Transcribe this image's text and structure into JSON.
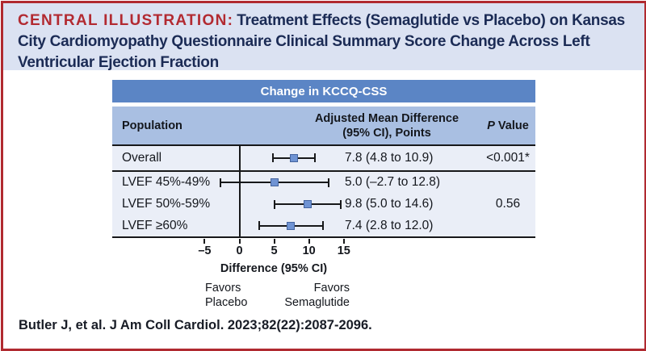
{
  "title": {
    "label": "CENTRAL ILLUSTRATION:",
    "text": "Treatment Effects (Semaglutide vs Placebo) on Kansas City Cardiomyopathy Questionnaire Clinical Summary Score Change Across Left Ventricular Ejection Fraction"
  },
  "table": {
    "header": "Change in KCCQ-CSS",
    "columns": {
      "population": "Population",
      "amd_line1": "Adjusted Mean Difference",
      "amd_line2": "(95% CI), Points",
      "p_italic": "P",
      "p_rest": " Value"
    }
  },
  "chart_data": {
    "type": "forest",
    "title": "Change in KCCQ-CSS",
    "xlabel": "Difference (95% CI)",
    "rows": [
      {
        "label": "Overall",
        "estimate": 7.8,
        "ci_low": 4.8,
        "ci_high": 10.9,
        "display": "7.8 (4.8 to 10.9)",
        "p": "<0.001*"
      },
      {
        "label": "LVEF 45%-49%",
        "estimate": 5.0,
        "ci_low": -2.7,
        "ci_high": 12.8,
        "display": "5.0 (–2.7 to 12.8)",
        "p": ""
      },
      {
        "label": "LVEF 50%-59%",
        "estimate": 9.8,
        "ci_low": 5.0,
        "ci_high": 14.6,
        "display": "9.8 (5.0 to 14.6)",
        "p": "0.56"
      },
      {
        "label": "LVEF ≥60%",
        "estimate": 7.4,
        "ci_low": 2.8,
        "ci_high": 12.0,
        "display": "7.4 (2.8 to 12.0)",
        "p": ""
      }
    ],
    "axis": {
      "ticks": [
        {
          "v": -5,
          "label": "–5"
        },
        {
          "v": 0,
          "label": "0"
        },
        {
          "v": 5,
          "label": "5"
        },
        {
          "v": 10,
          "label": "10"
        },
        {
          "v": 15,
          "label": "15"
        }
      ],
      "label": "Difference (95% CI)",
      "zero_line": 0,
      "favors_left": "Favors\nPlacebo",
      "favors_right": "Favors\nSemaglutide"
    },
    "colors": {
      "marker_fill": "#6f93d3",
      "marker_border": "#44649f",
      "header_bar": "#5b85c5",
      "column_header_bg": "#a9bfe2",
      "row_bg": "#eaeef7",
      "title_accent": "#b22a31",
      "title_text": "#1b2b55",
      "frame_border": "#b02a30"
    }
  },
  "citation": "Butler J, et al. J Am Coll Cardiol. 2023;82(22):2087-2096."
}
